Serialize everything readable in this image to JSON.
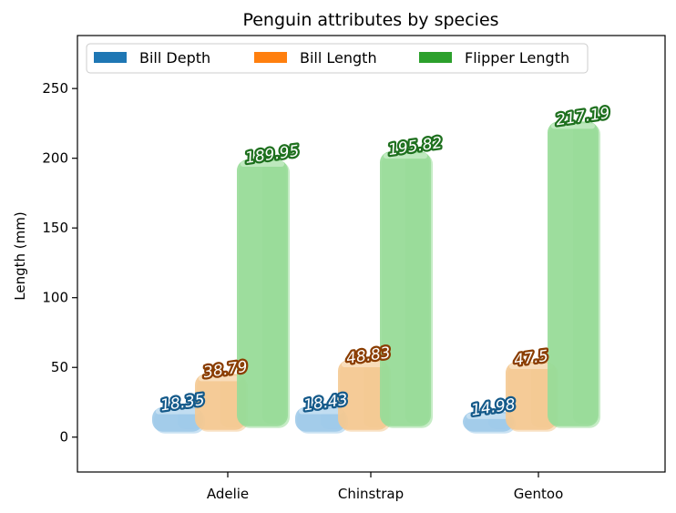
{
  "chart_data": {
    "type": "bar",
    "title": "Penguin attributes by species",
    "xlabel": "",
    "ylabel": "Length (mm)",
    "ylim": [
      -25,
      288
    ],
    "yticks": [
      0,
      50,
      100,
      150,
      200,
      250
    ],
    "ytick_labels": [
      "0",
      "50",
      "100",
      "150",
      "200",
      "250"
    ],
    "categories": [
      "Adelie",
      "Chinstrap",
      "Gentoo"
    ],
    "series": [
      {
        "name": "Bill Depth",
        "values": [
          18.35,
          18.43,
          14.98
        ],
        "labels": [
          "18.35",
          "18.43",
          "14.98"
        ],
        "color": "#1f77b4",
        "fill": "#9ecae9",
        "label_stroke": "#155a8a"
      },
      {
        "name": "Bill Length",
        "values": [
          38.79,
          48.83,
          47.5
        ],
        "labels": [
          "38.79",
          "48.83",
          "47.5"
        ],
        "color": "#ff7f0e",
        "fill": "#f4c992",
        "label_stroke": "#8a3d00"
      },
      {
        "name": "Flipper Length",
        "values": [
          189.95,
          195.82,
          217.19
        ],
        "labels": [
          "189.95",
          "195.82",
          "217.19"
        ],
        "color": "#2ca02c",
        "fill": "#98dc98",
        "label_stroke": "#1e701e"
      }
    ],
    "legend": {
      "placement": "top-left",
      "columns": 3
    }
  }
}
